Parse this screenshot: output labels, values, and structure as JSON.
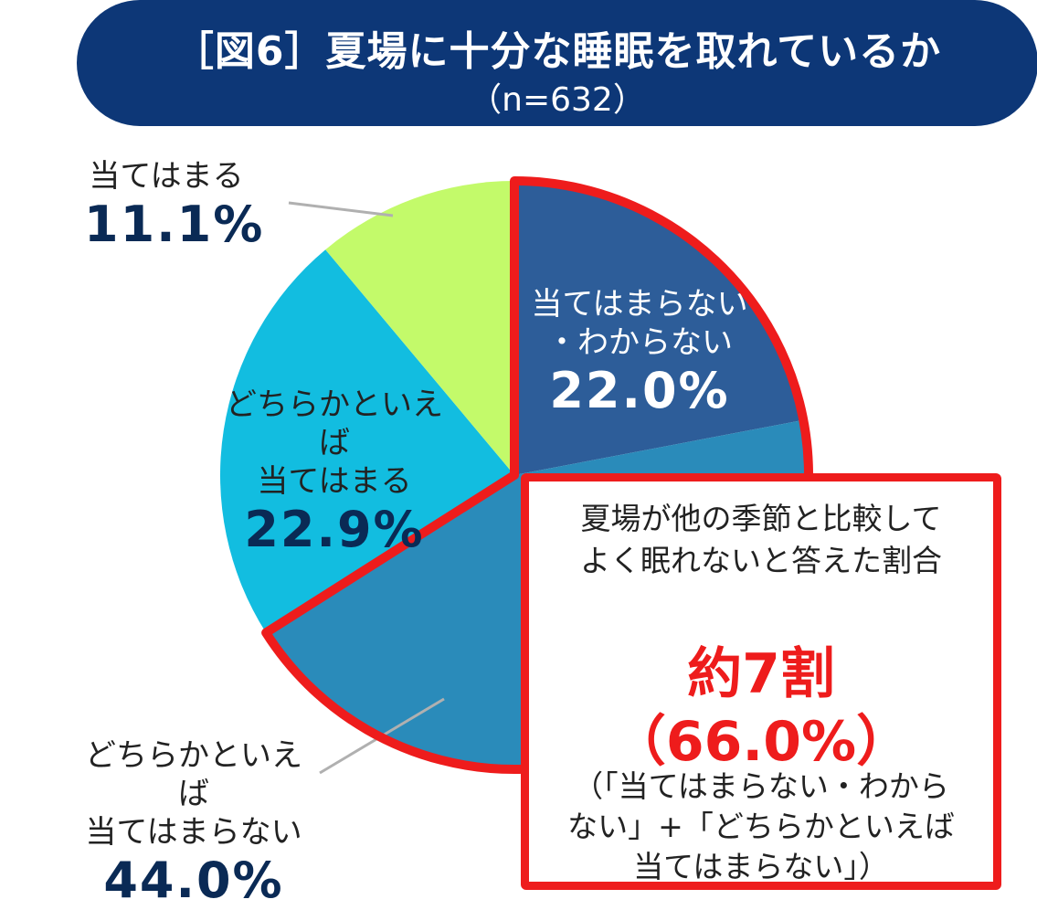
{
  "header": {
    "title": "［図6］夏場に十分な睡眠を取れているか",
    "subtitle": "（n=632）"
  },
  "chart_data": {
    "type": "pie",
    "title": "［図6］夏場に十分な睡眠を取れているか",
    "subtitle": "（n=632）",
    "slices": [
      {
        "label": "当てはまらない・わからない",
        "value": 22.0,
        "value_label": "22.0%",
        "color": "#2d5d99"
      },
      {
        "label": "どちらかといえば当てはまらない",
        "value": 44.0,
        "value_label": "44.0%",
        "color": "#2a8bba"
      },
      {
        "label": "どちらかといえば当てはまる",
        "value": 22.9,
        "value_label": "22.9%",
        "color": "#12bde0"
      },
      {
        "label": "当てはまる",
        "value": 11.1,
        "value_label": "11.1%",
        "color": "#c3fa6a"
      }
    ],
    "start_angle_deg": 0,
    "direction": "clockwise",
    "highlight_color": "#ee1c1c"
  },
  "labels": {
    "s1_line1": "当てはまらない",
    "s1_line2": "・わからない",
    "s2_line1": "どちらかといえば",
    "s2_line2": "当てはまらない",
    "s3_line1": "どちらかといえば",
    "s3_line2": "当てはまる",
    "s4": "当てはまる"
  },
  "callout": {
    "line1": "夏場が他の季節と比較して",
    "line2": "よく眠れないと答えた割合",
    "big1": "約7割",
    "big2": "（66.0%）",
    "note1": "（「当てはまらない・わから",
    "note2": "ない」+「どちらかといえば",
    "note3": "当てはまらない」）"
  }
}
